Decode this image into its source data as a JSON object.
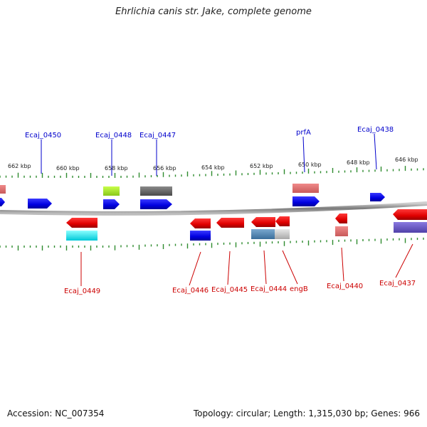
{
  "title": "Ehrlichia canis str. Jake, complete genome",
  "accession": "Accession: NC_007354",
  "stats": "Topology: circular; Length: 1,315,030 bp; Genes: 966",
  "colors": {
    "top_label": "#0000cc",
    "bottom_label": "#cc0000",
    "backbone": "#8a8a8a",
    "tick": "#2e8b2e"
  },
  "kbp_labels": [
    "662 kbp",
    "660 kbp",
    "658 kbp",
    "656 kbp",
    "654 kbp",
    "652 kbp",
    "650 kbp",
    "648 kbp",
    "646 kbp"
  ],
  "genes_top": [
    "Ecaj_0450",
    "Ecaj_0448",
    "Ecaj_0447",
    "prfA",
    "Ecaj_0438"
  ],
  "genes_bottom": [
    "Ecaj_0449",
    "Ecaj_0446",
    "Ecaj_0445",
    "Ecaj_0444",
    "engB",
    "Ecaj_0440",
    "Ecaj_0437"
  ]
}
